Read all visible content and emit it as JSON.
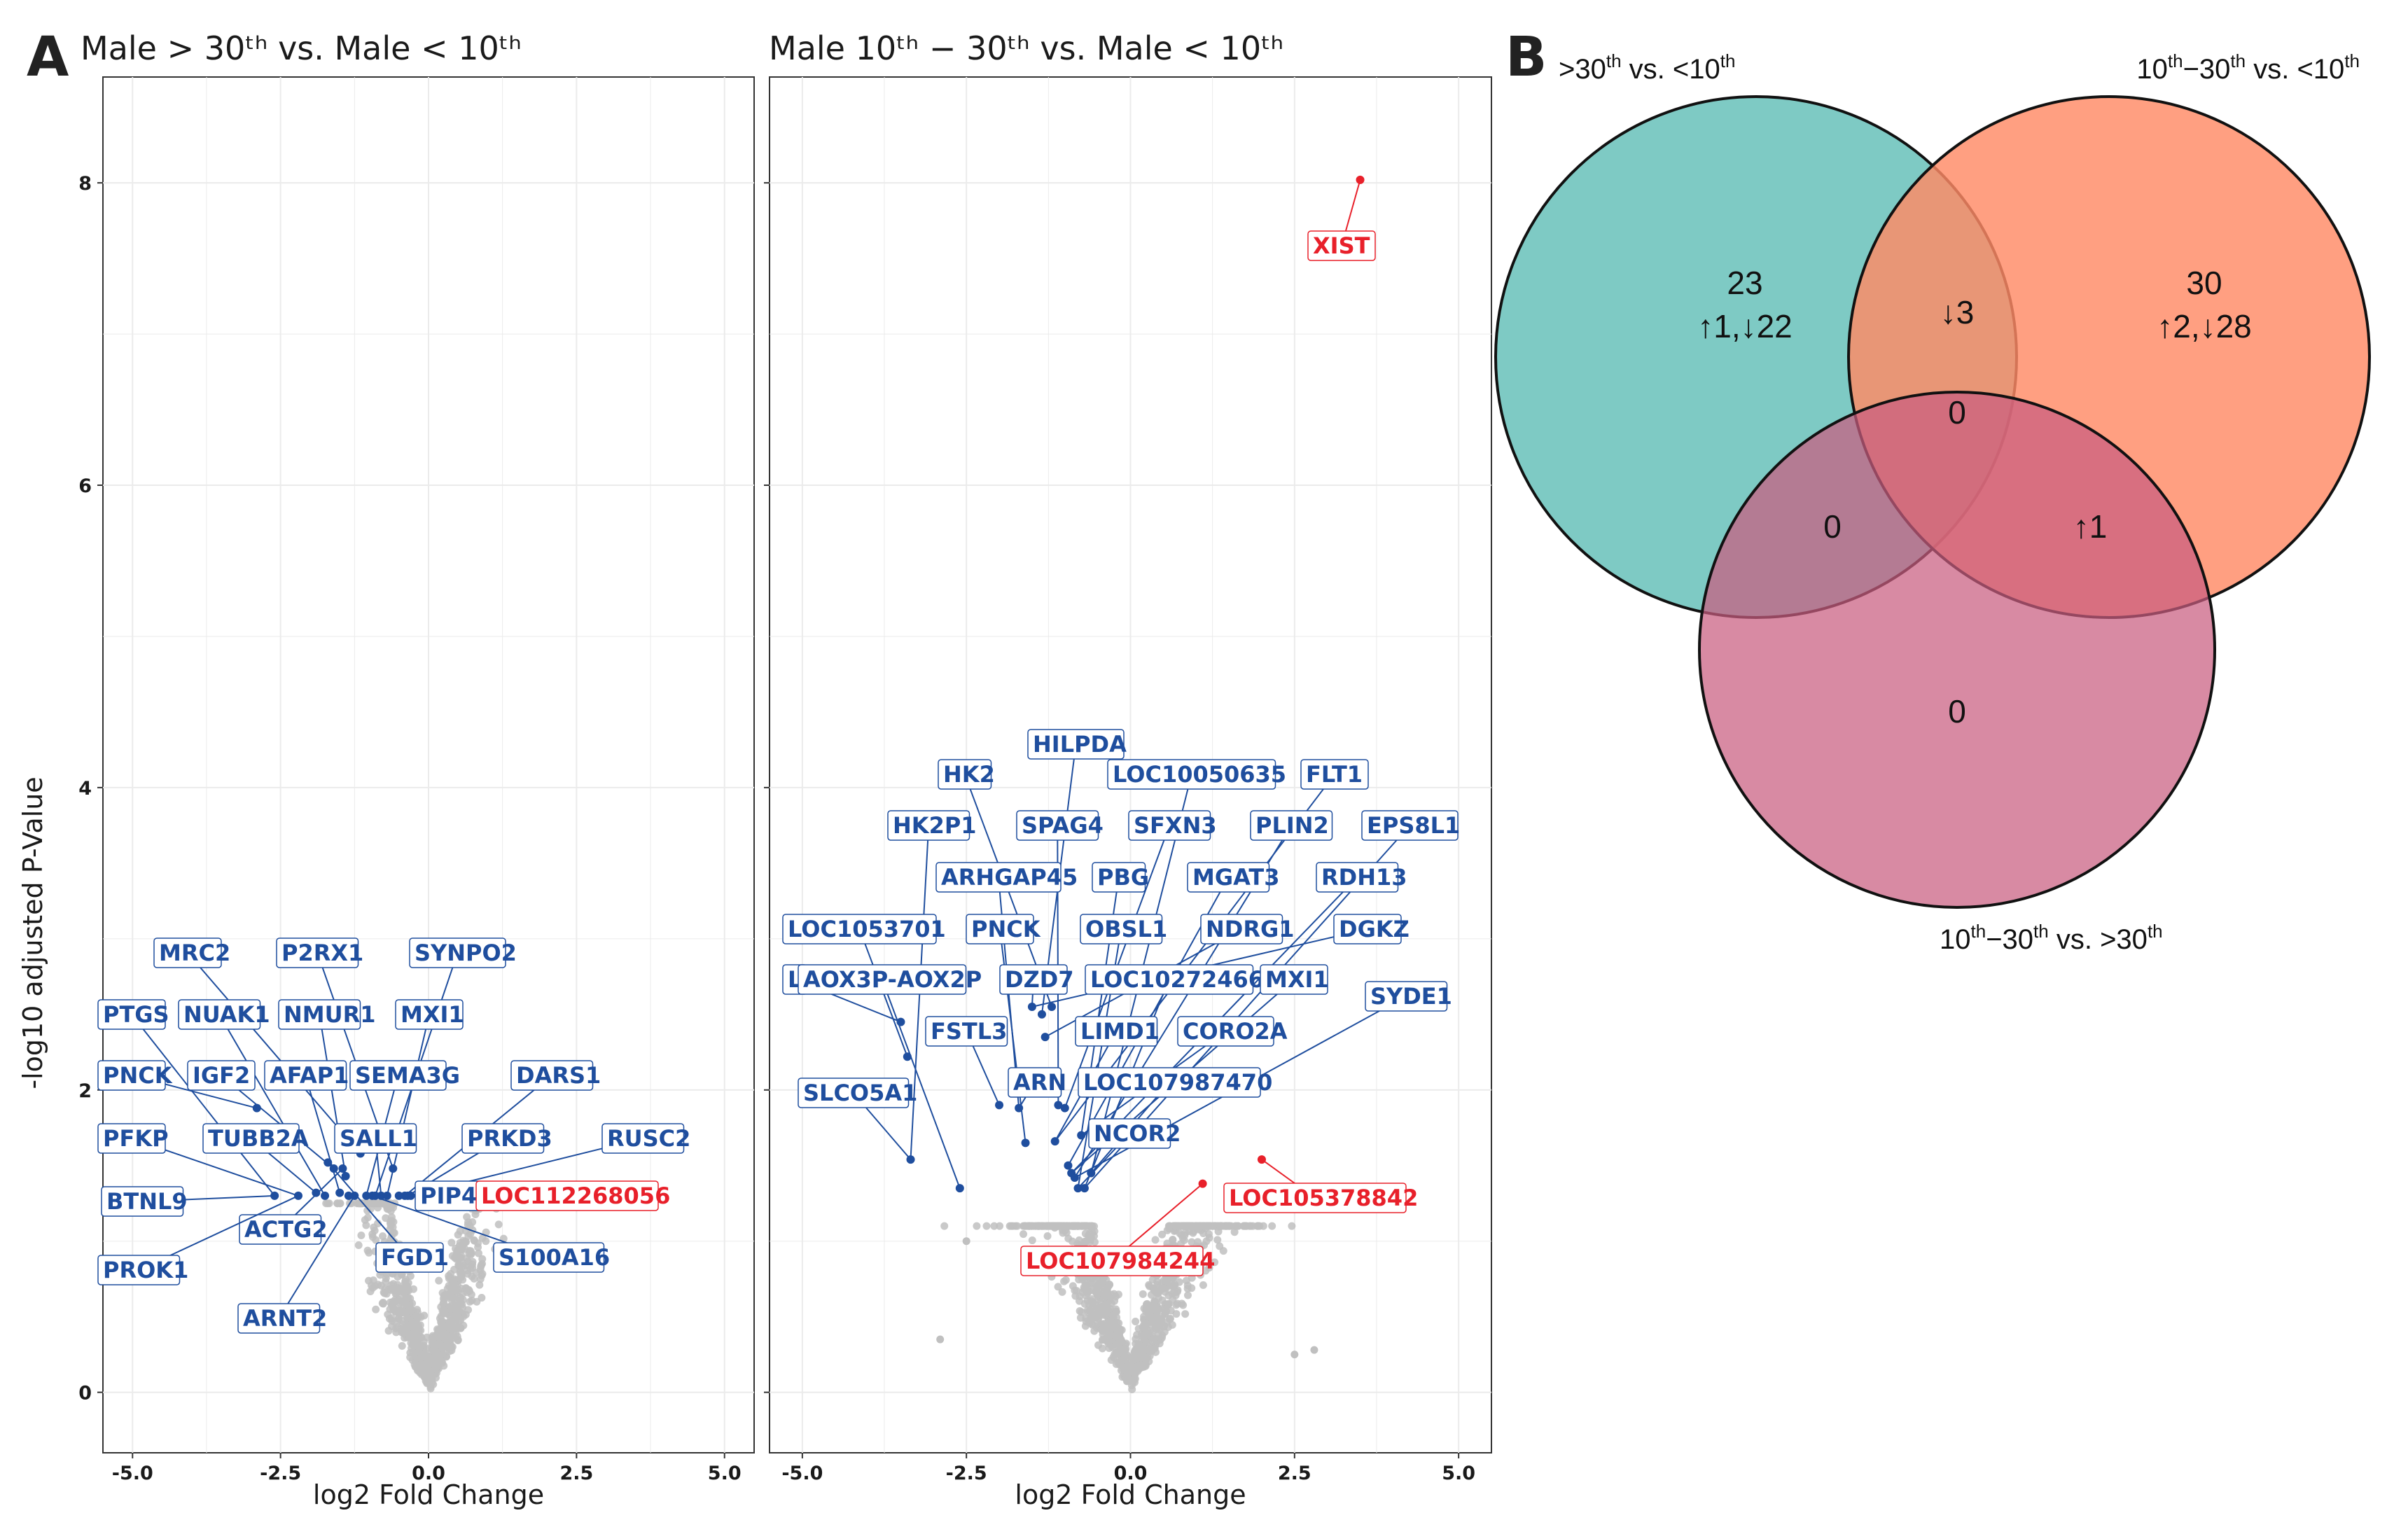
{
  "panel_labels": [
    "A",
    "B"
  ],
  "colors": {
    "up": "#e8202a",
    "down": "#1f4e9e",
    "ns": "#c0c0c0",
    "venn_a": "#4cb5ad",
    "venn_b": "#ff8a65",
    "venn_c": "#c95d80"
  },
  "chart_data": [
    {
      "type": "scatter",
      "title": "Male  > 30ᵗʰ  vs. Male  < 10ᵗʰ",
      "xlabel": "log2 Fold Change",
      "ylabel": "-log10 adjusted P-Value",
      "xlim": [
        -5.5,
        5.5
      ],
      "ylim": [
        -0.4,
        8.7
      ],
      "xticks": [
        -5.0,
        -2.5,
        0.0,
        2.5,
        5.0
      ],
      "xtick_labels": [
        "-5.0",
        "-2.5",
        "0.0",
        "2.5",
        "5.0"
      ],
      "yticks": [
        0,
        2,
        4,
        6,
        8
      ],
      "ytick_labels": [
        "0",
        "2",
        "4",
        "6",
        "8"
      ],
      "grid": true,
      "significant_points": [
        {
          "x": -2.6,
          "y": 1.3,
          "dir": "down"
        },
        {
          "x": -2.2,
          "y": 1.3,
          "dir": "down"
        },
        {
          "x": -1.9,
          "y": 1.32,
          "dir": "down"
        },
        {
          "x": -1.75,
          "y": 1.3,
          "dir": "down"
        },
        {
          "x": -1.6,
          "y": 1.48,
          "dir": "down"
        },
        {
          "x": -1.5,
          "y": 1.32,
          "dir": "down"
        },
        {
          "x": -1.4,
          "y": 1.43,
          "dir": "down"
        },
        {
          "x": -1.35,
          "y": 1.3,
          "dir": "down"
        },
        {
          "x": -1.25,
          "y": 1.3,
          "dir": "down"
        },
        {
          "x": -1.15,
          "y": 1.58,
          "dir": "down"
        },
        {
          "x": -1.05,
          "y": 1.3,
          "dir": "down"
        },
        {
          "x": -0.95,
          "y": 1.3,
          "dir": "down"
        },
        {
          "x": -0.8,
          "y": 1.3,
          "dir": "down"
        },
        {
          "x": -0.7,
          "y": 1.3,
          "dir": "down"
        },
        {
          "x": -0.6,
          "y": 1.48,
          "dir": "down"
        },
        {
          "x": -0.5,
          "y": 1.3,
          "dir": "down"
        },
        {
          "x": -2.9,
          "y": 1.88,
          "dir": "down"
        },
        {
          "x": -1.45,
          "y": 1.48,
          "dir": "down"
        },
        {
          "x": -1.7,
          "y": 1.52,
          "dir": "down"
        },
        {
          "x": -0.4,
          "y": 1.3,
          "dir": "down"
        },
        {
          "x": -0.35,
          "y": 1.3,
          "dir": "down"
        },
        {
          "x": -0.9,
          "y": 1.3,
          "dir": "down"
        },
        {
          "x": -0.3,
          "y": 1.3,
          "dir": "down"
        }
      ],
      "labels": [
        {
          "text": "MRC2",
          "dir": "down"
        },
        {
          "text": "P2RX1",
          "dir": "down"
        },
        {
          "text": "SYNPO2",
          "dir": "down"
        },
        {
          "text": "PTGS",
          "dir": "down"
        },
        {
          "text": "NUAK1",
          "dir": "down"
        },
        {
          "text": "NMUR1",
          "dir": "down"
        },
        {
          "text": "MXI1",
          "dir": "down"
        },
        {
          "text": "PNCK",
          "dir": "down"
        },
        {
          "text": "IGF2",
          "dir": "down"
        },
        {
          "text": "AFAP1",
          "dir": "down"
        },
        {
          "text": "SEMA3G",
          "dir": "down"
        },
        {
          "text": "DARS1",
          "dir": "down"
        },
        {
          "text": "PFKP",
          "dir": "down"
        },
        {
          "text": "TUBB2A",
          "dir": "down"
        },
        {
          "text": "SALL1",
          "dir": "down"
        },
        {
          "text": "PRKD3",
          "dir": "down"
        },
        {
          "text": "RUSC2",
          "dir": "down"
        },
        {
          "text": "BTNL9",
          "dir": "down"
        },
        {
          "text": "PIP4",
          "dir": "down"
        },
        {
          "text": "LOC112268056",
          "dir": "up"
        },
        {
          "text": "ACTG2",
          "dir": "down"
        },
        {
          "text": "PROK1",
          "dir": "down"
        },
        {
          "text": "FGD1",
          "dir": "down"
        },
        {
          "text": "S100A16",
          "dir": "down"
        },
        {
          "text": "ARNT2",
          "dir": "down"
        }
      ]
    },
    {
      "type": "scatter",
      "title": "Male 10ᵗʰ − 30ᵗʰ vs. Male  < 10ᵗʰ",
      "xlabel": "log2 Fold Change",
      "ylabel": "",
      "xlim": [
        -5.5,
        5.5
      ],
      "ylim": [
        -0.4,
        8.7
      ],
      "xticks": [
        -5.0,
        -2.5,
        0.0,
        2.5,
        5.0
      ],
      "xtick_labels": [
        "-5.0",
        "-2.5",
        "0.0",
        "2.5",
        "5.0"
      ],
      "grid": true,
      "significant_points": [
        {
          "x": 3.5,
          "y": 8.02,
          "dir": "up"
        },
        {
          "x": 2.0,
          "y": 1.54,
          "dir": "up"
        },
        {
          "x": 1.1,
          "y": 1.38,
          "dir": "up"
        },
        {
          "x": -3.5,
          "y": 2.45,
          "dir": "down"
        },
        {
          "x": -3.4,
          "y": 2.22,
          "dir": "down"
        },
        {
          "x": -3.35,
          "y": 1.54,
          "dir": "down"
        },
        {
          "x": -2.6,
          "y": 1.35,
          "dir": "down"
        },
        {
          "x": -2.0,
          "y": 1.9,
          "dir": "down"
        },
        {
          "x": -1.7,
          "y": 1.88,
          "dir": "down"
        },
        {
          "x": -1.6,
          "y": 1.65,
          "dir": "down"
        },
        {
          "x": -1.5,
          "y": 2.55,
          "dir": "down"
        },
        {
          "x": -1.35,
          "y": 2.5,
          "dir": "down"
        },
        {
          "x": -1.2,
          "y": 2.55,
          "dir": "down"
        },
        {
          "x": -1.1,
          "y": 1.9,
          "dir": "down"
        },
        {
          "x": -1.0,
          "y": 1.88,
          "dir": "down"
        },
        {
          "x": -0.95,
          "y": 1.5,
          "dir": "down"
        },
        {
          "x": -0.9,
          "y": 1.45,
          "dir": "down"
        },
        {
          "x": -0.85,
          "y": 1.42,
          "dir": "down"
        },
        {
          "x": -0.8,
          "y": 1.35,
          "dir": "down"
        },
        {
          "x": -0.7,
          "y": 1.35,
          "dir": "down"
        },
        {
          "x": -0.6,
          "y": 1.45,
          "dir": "down"
        },
        {
          "x": -1.15,
          "y": 1.66,
          "dir": "down"
        },
        {
          "x": -0.75,
          "y": 1.7,
          "dir": "down"
        },
        {
          "x": -1.3,
          "y": 2.35,
          "dir": "down"
        }
      ],
      "labels": [
        {
          "text": "XIST",
          "dir": "up"
        },
        {
          "text": "HILPDA",
          "dir": "down"
        },
        {
          "text": "HK2",
          "dir": "down"
        },
        {
          "text": "LOC10050635",
          "dir": "down"
        },
        {
          "text": "FLT1",
          "dir": "down"
        },
        {
          "text": "HK2P1",
          "dir": "down"
        },
        {
          "text": "SPAG4",
          "dir": "down"
        },
        {
          "text": "SFXN3",
          "dir": "down"
        },
        {
          "text": "PLIN2",
          "dir": "down"
        },
        {
          "text": "EPS8L1",
          "dir": "down"
        },
        {
          "text": "ARHGAP45",
          "dir": "down"
        },
        {
          "text": "PBG",
          "dir": "down"
        },
        {
          "text": "MGAT3",
          "dir": "down"
        },
        {
          "text": "RDH13",
          "dir": "down"
        },
        {
          "text": "LOC1053701",
          "dir": "down"
        },
        {
          "text": "PNCK",
          "dir": "down"
        },
        {
          "text": "OBSL1",
          "dir": "down"
        },
        {
          "text": "NDRG1",
          "dir": "down"
        },
        {
          "text": "DGKZ",
          "dir": "down"
        },
        {
          "text": "L",
          "dir": "down"
        },
        {
          "text": "AOX3P-AOX2P",
          "dir": "down"
        },
        {
          "text": "DZD7",
          "dir": "down"
        },
        {
          "text": "LOC10272466",
          "dir": "down"
        },
        {
          "text": "MXI1",
          "dir": "down"
        },
        {
          "text": "SYDE1",
          "dir": "down"
        },
        {
          "text": "FSTL3",
          "dir": "down"
        },
        {
          "text": "LIMD1",
          "dir": "down"
        },
        {
          "text": "CORO2A",
          "dir": "down"
        },
        {
          "text": "ARN",
          "dir": "down"
        },
        {
          "text": "LOC107987470",
          "dir": "down"
        },
        {
          "text": "SLCO5A1",
          "dir": "down"
        },
        {
          "text": "NCOR2",
          "dir": "down"
        },
        {
          "text": "LOC105378842",
          "dir": "up"
        },
        {
          "text": "LOC107984244",
          "dir": "up"
        }
      ]
    },
    {
      "type": "venn",
      "sets": [
        {
          "name": ">30th vs. <10th",
          "label_main": ">30",
          "label_sup": "th",
          "label_rest": " vs. <10",
          "label_sup2": "th"
        },
        {
          "name": "10th−30th vs. <10th",
          "label_main": "10",
          "label_sup": "th",
          "label_mid": "−30",
          "label_sup_b": "th",
          "label_rest": " vs. <10",
          "label_sup2": "th"
        },
        {
          "name": "10th−30th vs. >30th",
          "label_main": "10",
          "label_sup": "th",
          "label_mid": "−30",
          "label_sup_b": "th",
          "label_rest": " vs. >30",
          "label_sup2": "th"
        }
      ],
      "regions": {
        "a_only": {
          "count": "23",
          "detail": "↑1,↓22"
        },
        "b_only": {
          "count": "30",
          "detail": "↑2,↓28"
        },
        "ab": {
          "count": "↓3"
        },
        "abc": {
          "count": "0"
        },
        "ac": {
          "count": "0"
        },
        "bc": {
          "count": "↑1"
        },
        "c_only": {
          "count": "0"
        }
      }
    }
  ]
}
